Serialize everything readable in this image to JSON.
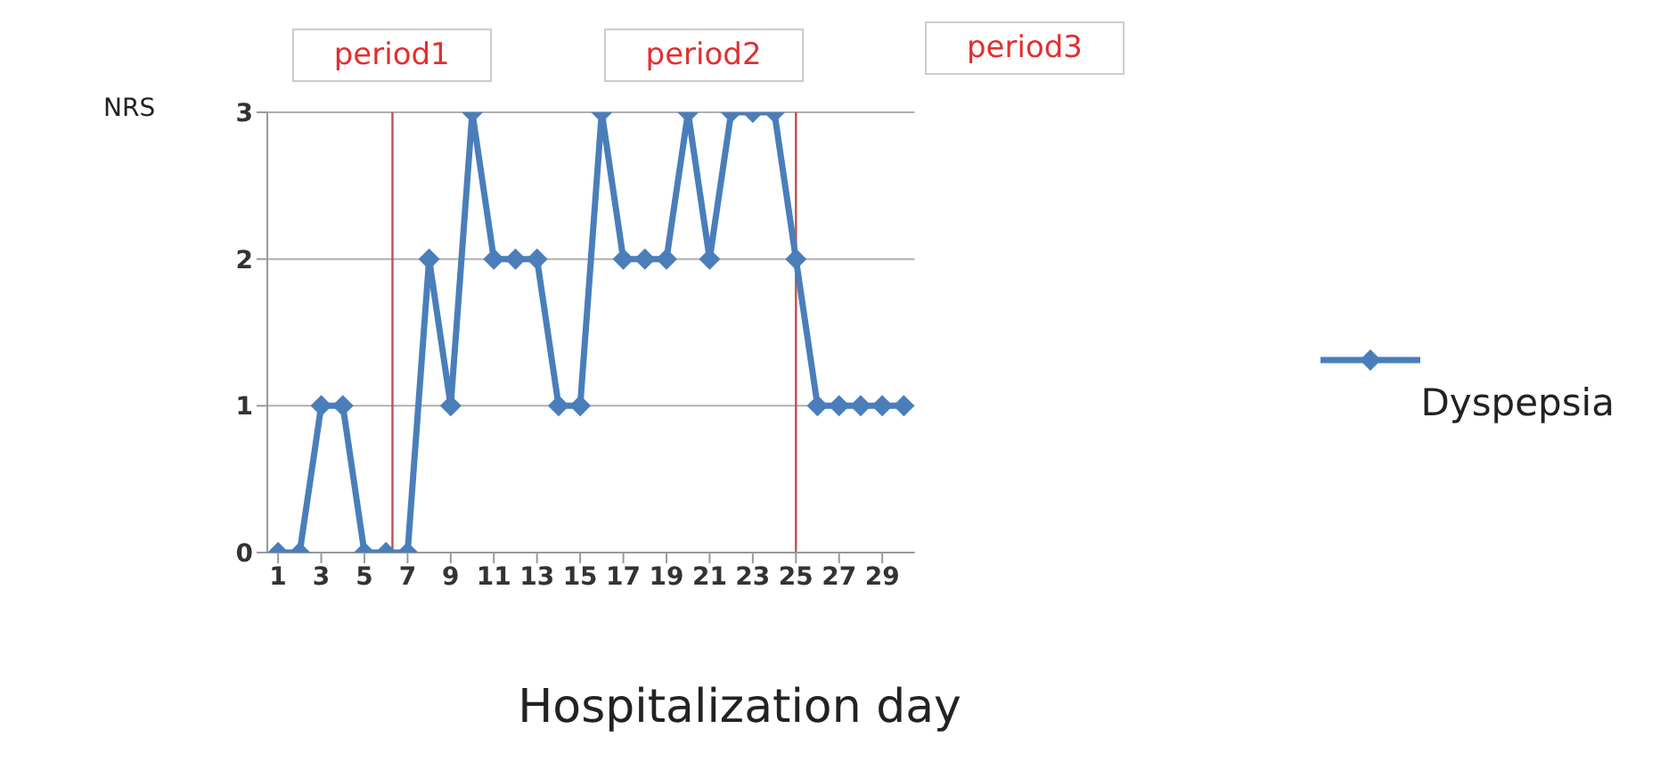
{
  "chart_data": {
    "type": "line",
    "xlabel": "Hospitalization day",
    "ylabel": "NRS",
    "x": [
      1,
      2,
      3,
      4,
      5,
      6,
      7,
      8,
      9,
      10,
      11,
      12,
      13,
      14,
      15,
      16,
      17,
      18,
      19,
      20,
      21,
      22,
      23,
      24,
      25,
      26,
      27,
      28,
      29,
      30
    ],
    "series": [
      {
        "name": "Dyspepsia",
        "color": "#4a7ebb",
        "values": [
          0,
          0,
          1,
          1,
          0,
          0,
          0,
          2,
          1,
          3,
          2,
          2,
          2,
          1,
          1,
          3,
          2,
          2,
          2,
          3,
          2,
          3,
          3,
          3,
          2,
          1,
          1,
          1,
          1,
          1
        ]
      }
    ],
    "xlim": [
      0.5,
      30.5
    ],
    "xticks": [
      1,
      3,
      5,
      7,
      9,
      11,
      13,
      15,
      17,
      19,
      21,
      23,
      25,
      27,
      29
    ],
    "ylim": [
      0,
      3
    ],
    "yticks": [
      0,
      1,
      2,
      3
    ],
    "grid": "y",
    "legend": "right",
    "marker": "diamond",
    "line_style": "solid",
    "ref_lines": [
      {
        "axis": "x",
        "value": 6.3,
        "color": "#c0504d"
      },
      {
        "axis": "x",
        "value": 25,
        "color": "#c0504d"
      }
    ],
    "annotations": [
      "period1",
      "period2",
      "period3"
    ]
  }
}
